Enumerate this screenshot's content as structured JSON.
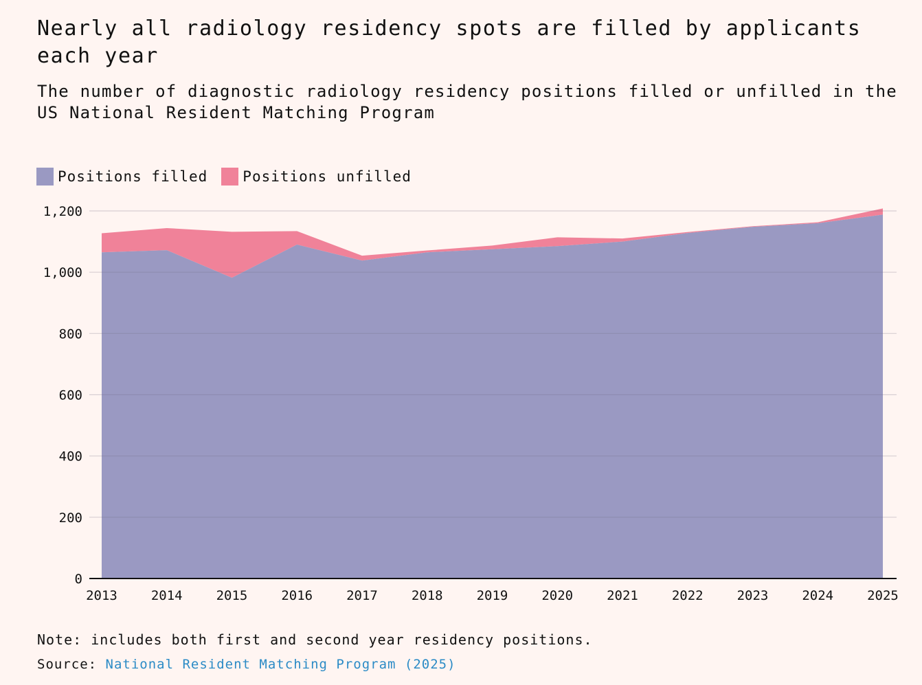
{
  "title": "Nearly all radiology residency spots are filled by applicants each year",
  "subtitle": "The number of diagnostic radiology residency positions filled or unfilled in the US National Resident Matching Program",
  "legend": {
    "filled": "Positions filled",
    "unfilled": "Positions unfilled"
  },
  "colors": {
    "filled": "#9a99c2",
    "unfilled": "#f08299",
    "background": "#fff5f2",
    "grid": "#d9d3d3",
    "link": "#2b8bc6"
  },
  "note": "Note: includes both first and second year residency positions.",
  "source": {
    "prefix": "Source:",
    "link_text": "National Resident Matching Program (2025)"
  },
  "chart_data": {
    "type": "area",
    "stacked": true,
    "categories": [
      "2013",
      "2014",
      "2015",
      "2016",
      "2017",
      "2018",
      "2019",
      "2020",
      "2021",
      "2022",
      "2023",
      "2024",
      "2025"
    ],
    "series": [
      {
        "name": "Positions filled",
        "values": [
          1065,
          1072,
          982,
          1090,
          1038,
          1065,
          1075,
          1085,
          1100,
          1128,
          1148,
          1160,
          1188
        ]
      },
      {
        "name": "Positions unfilled",
        "values": [
          62,
          72,
          150,
          44,
          16,
          6,
          12,
          29,
          10,
          3,
          2,
          3,
          20
        ]
      }
    ],
    "y_ticks": [
      0,
      200,
      400,
      600,
      800,
      1000,
      1200
    ],
    "y_tick_labels": [
      "0",
      "200",
      "400",
      "600",
      "800",
      "1,000",
      "1,200"
    ],
    "ylim": [
      0,
      1200
    ],
    "xlabel": "",
    "ylabel": "",
    "legend_position": "top-left",
    "grid": true
  }
}
